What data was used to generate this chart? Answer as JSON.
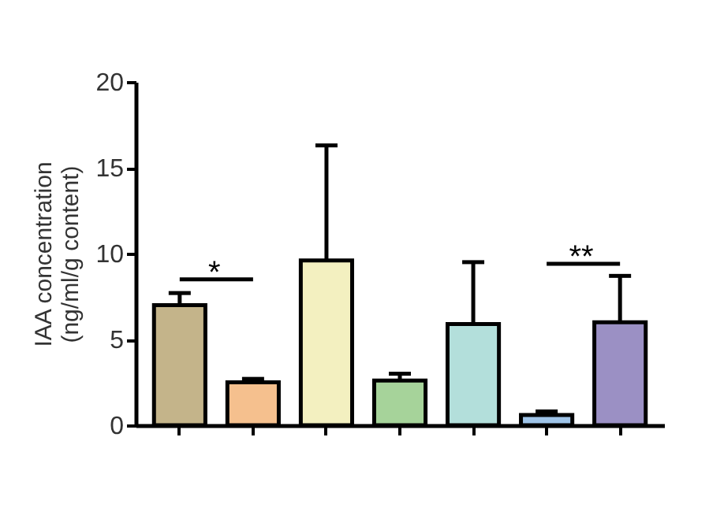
{
  "chart_data": {
    "type": "bar",
    "ylabel": "IAA concentration\n(ng/ml/g content)",
    "categories": [
      null,
      null,
      null,
      null,
      null,
      null,
      null
    ],
    "values": [
      7.0,
      2.5,
      9.6,
      2.6,
      5.9,
      0.6,
      6.0
    ],
    "errors": [
      [
        7.0,
        7.7
      ],
      [
        2.5,
        2.7
      ],
      [
        9.6,
        16.3
      ],
      [
        2.6,
        3.0
      ],
      [
        5.9,
        9.5
      ],
      [
        0.6,
        0.8
      ],
      [
        6.0,
        8.7
      ]
    ],
    "colors": [
      "#c4b48a",
      "#f5c08e",
      "#f3f0c0",
      "#a6d39a",
      "#b3dfdb",
      "#9fc4e8",
      "#9b90c4"
    ],
    "ylim": [
      0,
      20
    ],
    "yticks": [
      0,
      5,
      10,
      15,
      20
    ],
    "annotations": [
      "*",
      "**"
    ],
    "grid": false
  }
}
